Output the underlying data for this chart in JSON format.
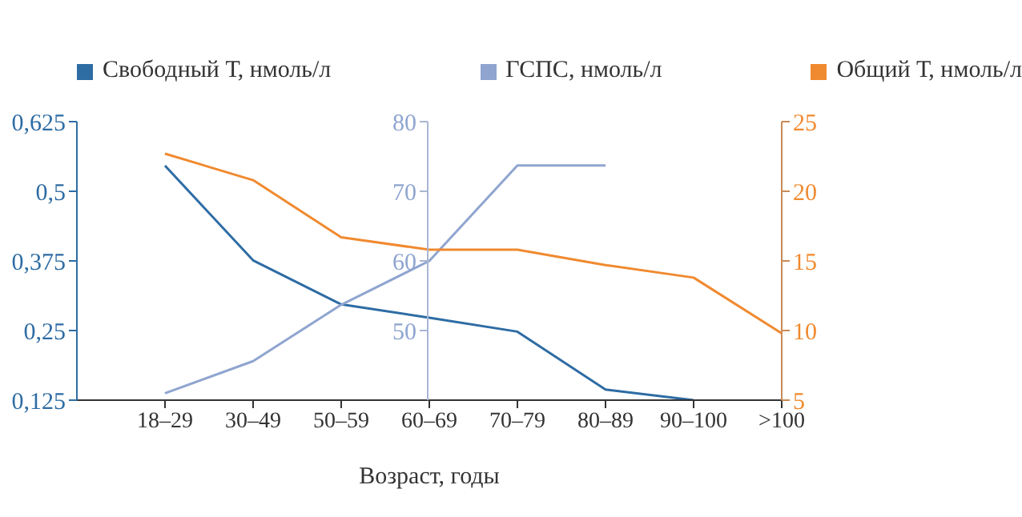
{
  "chart_data": {
    "type": "line",
    "xlabel": "Возраст, годы",
    "categories": [
      "18–29",
      "30–49",
      "50–59",
      "60–69",
      "70–79",
      "80–89",
      "90–100",
      ">100"
    ],
    "series": [
      {
        "name": "Свободный Т, нмоль/л",
        "color": "#2e6ca4",
        "axis": "y",
        "values": [
          0.546,
          0.376,
          0.297,
          0.273,
          0.248,
          0.144,
          0.125,
          null
        ]
      },
      {
        "name": "ГСПС, нмоль/л",
        "color": "#8fa5d0",
        "axis": "y2",
        "values": [
          41,
          45.6,
          53.7,
          60,
          73.7,
          73.7,
          null,
          null
        ]
      },
      {
        "name": "Общий Т, нмоль/л",
        "color": "#f08a30",
        "axis": "y3",
        "values": [
          22.7,
          20.8,
          16.7,
          15.8,
          15.8,
          14.7,
          13.8,
          9.8
        ]
      }
    ],
    "ylim": [
      0.125,
      0.625
    ],
    "yticks": [
      {
        "value": 0.125,
        "label": "0,125"
      },
      {
        "value": 0.25,
        "label": "0,25"
      },
      {
        "value": 0.375,
        "label": "0,375"
      },
      {
        "value": 0.5,
        "label": "0,5"
      },
      {
        "value": 0.625,
        "label": "0,625"
      }
    ],
    "y2lim": [
      40,
      80
    ],
    "y2ticks": [
      50,
      60,
      70,
      80
    ],
    "y3lim": [
      5,
      25
    ],
    "y3ticks": [
      5,
      10,
      15,
      20,
      25
    ],
    "legend": "top",
    "grid": false,
    "marker": "none",
    "line_style": "solid"
  }
}
